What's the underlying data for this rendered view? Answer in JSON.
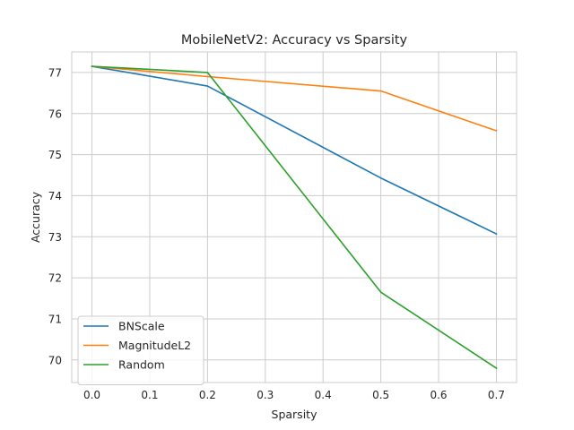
{
  "chart_data": {
    "type": "line",
    "title": "MobileNetV2: Accuracy vs Sparsity",
    "xlabel": "Sparsity",
    "ylabel": "Accuracy",
    "x": [
      0.0,
      0.2,
      0.5,
      0.7
    ],
    "xlim": [
      -0.035,
      0.735
    ],
    "ylim": [
      69.45,
      77.5
    ],
    "xticks": [
      0.0,
      0.1,
      0.2,
      0.3,
      0.4,
      0.5,
      0.6,
      0.7
    ],
    "xtick_labels": [
      "0.0",
      "0.1",
      "0.2",
      "0.3",
      "0.4",
      "0.5",
      "0.6",
      "0.7"
    ],
    "yticks": [
      70,
      71,
      72,
      73,
      74,
      75,
      76,
      77
    ],
    "ytick_labels": [
      "70",
      "71",
      "72",
      "73",
      "74",
      "75",
      "76",
      "77"
    ],
    "grid": true,
    "legend_position": "lower-left",
    "series": [
      {
        "name": "BNScale",
        "color": "#1f77b4",
        "values": [
          77.15,
          76.67,
          74.43,
          73.07
        ]
      },
      {
        "name": "MagnitudeL2",
        "color": "#ff7f0e",
        "values": [
          77.15,
          76.9,
          76.55,
          75.58
        ]
      },
      {
        "name": "Random",
        "color": "#2ca02c",
        "values": [
          77.15,
          77.0,
          71.65,
          69.8
        ]
      }
    ]
  }
}
